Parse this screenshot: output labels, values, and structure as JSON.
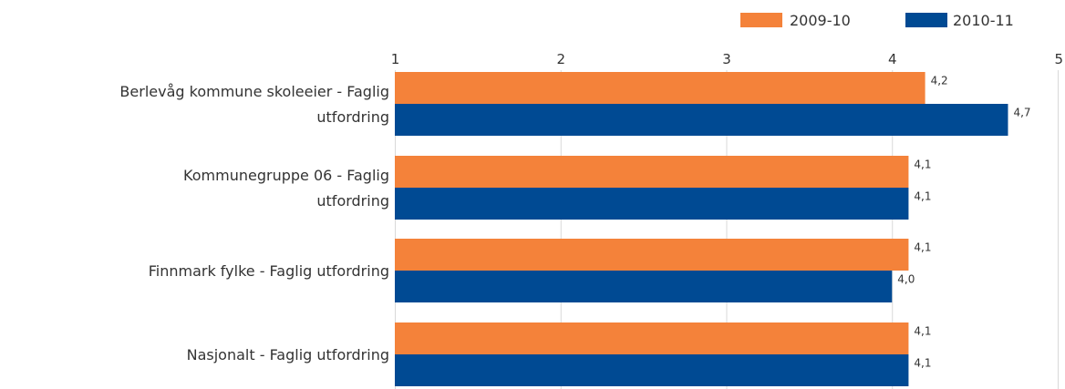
{
  "chart_data": {
    "type": "bar",
    "orientation": "horizontal",
    "categories": [
      [
        "Berlevåg kommune skoleeier - Faglig",
        "utfordring"
      ],
      [
        "Kommunegruppe 06 - Faglig",
        "utfordring"
      ],
      [
        "Finnmark fylke - Faglig utfordring"
      ],
      [
        "Nasjonalt - Faglig utfordring"
      ]
    ],
    "series": [
      {
        "name": "2009-10",
        "color": "#f4823a",
        "values": [
          4.2,
          4.1,
          4.1,
          4.1
        ],
        "labels": [
          "4,2",
          "4,1",
          "4,1",
          "4,1"
        ]
      },
      {
        "name": "2010-11",
        "color": "#004a93",
        "values": [
          4.7,
          4.1,
          4.0,
          4.1
        ],
        "labels": [
          "4,7",
          "4,1",
          "4,0",
          "4,1"
        ]
      }
    ],
    "xaxis": {
      "min": 1,
      "max": 5,
      "ticks": [
        "1",
        "2",
        "3",
        "4",
        "5"
      ],
      "position": "top"
    },
    "grid": true,
    "legend": "top-right"
  }
}
